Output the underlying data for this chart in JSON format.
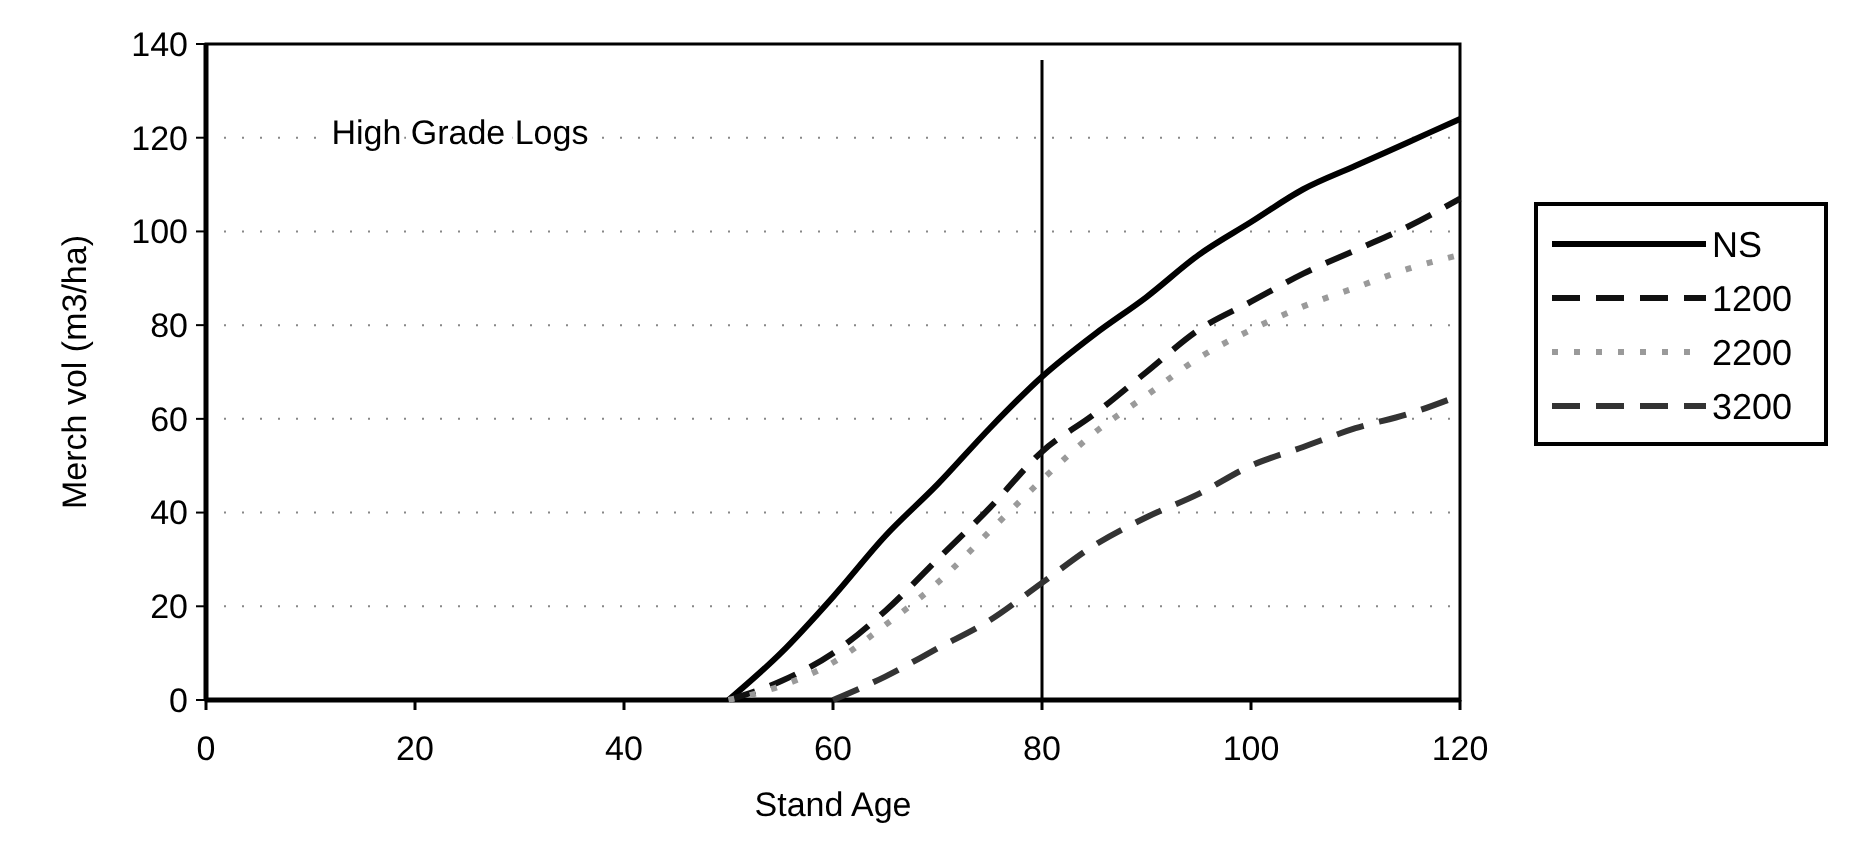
{
  "chart_data": {
    "type": "line",
    "xlabel": "Stand Age",
    "ylabel": "Merch vol (m3/ha)",
    "annotations": [
      "High Grade Logs"
    ],
    "xlim": [
      0,
      120
    ],
    "xticks": [
      0,
      20,
      40,
      60,
      80,
      100,
      120
    ],
    "ylim": [
      0,
      140
    ],
    "yticks": [
      0,
      20,
      40,
      60,
      80,
      100,
      120,
      140
    ],
    "grid": "y",
    "legend": "right",
    "ref_lines": [
      {
        "axis": "x",
        "value": 80,
        "label": null,
        "color": "#000000"
      }
    ],
    "series": [
      {
        "name": "NS",
        "color": "#000000",
        "line_style": "solid",
        "x": [
          50,
          55,
          60,
          65,
          70,
          75,
          80,
          85,
          90,
          95,
          100,
          105,
          110,
          115,
          120
        ],
        "values": [
          0,
          10,
          22,
          35,
          46,
          58,
          69,
          78,
          86,
          95,
          102,
          109,
          114,
          119,
          124
        ]
      },
      {
        "name": "1200",
        "color": "#111111",
        "line_style": "dashed",
        "x": [
          50,
          55,
          60,
          65,
          70,
          75,
          80,
          85,
          90,
          95,
          100,
          105,
          110,
          115,
          120
        ],
        "values": [
          0,
          4,
          10,
          19,
          30,
          41,
          53,
          61,
          70,
          79,
          85,
          91,
          96,
          101,
          107
        ]
      },
      {
        "name": "2200",
        "color": "#9a9a9a",
        "line_style": "dotted",
        "x": [
          50,
          55,
          60,
          65,
          70,
          75,
          80,
          85,
          90,
          95,
          100,
          105,
          110,
          115,
          120
        ],
        "values": [
          0,
          3,
          8,
          16,
          25,
          36,
          47,
          57,
          65,
          73,
          79,
          84,
          88,
          92,
          95
        ]
      },
      {
        "name": "3200",
        "color": "#333333",
        "line_style": "dashed",
        "x": [
          60,
          65,
          70,
          75,
          80,
          85,
          90,
          95,
          100,
          105,
          110,
          115,
          120
        ],
        "values": [
          0,
          5,
          11,
          17,
          25,
          33,
          39,
          44,
          50,
          54,
          58,
          61,
          65
        ]
      }
    ]
  }
}
